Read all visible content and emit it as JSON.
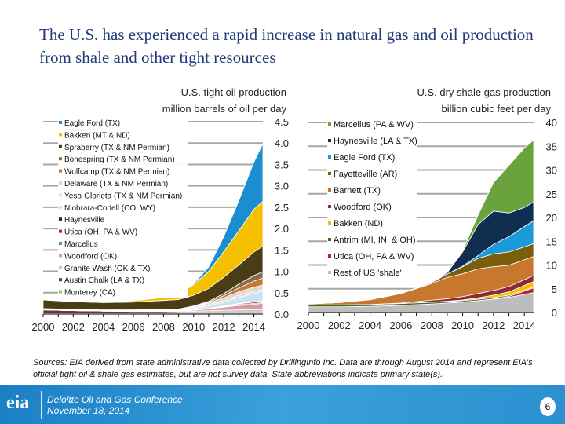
{
  "title": "The U.S. has experienced a rapid increase in natural gas and oil production from shale and other tight resources",
  "sources": "Sources: EIA derived from state administrative data collected by DrillingInfo Inc. Data are through August 2014 and represent EIA's official tight oil & shale gas estimates, but are not survey data. State abbreviations indicate primary state(s).",
  "footer": {
    "logo": "eia",
    "conference": "Deloitte Oil and Gas Conference",
    "date": "November 18, 2014",
    "page": "6"
  },
  "chart_data": [
    {
      "type": "area",
      "stacked": true,
      "title": "U.S. tight oil production",
      "ylabel": "million barrels of oil per day",
      "ylim": [
        0,
        4.5
      ],
      "yticks": [
        "0.0",
        "0.5",
        "1.0",
        "1.5",
        "2.0",
        "2.5",
        "3.0",
        "3.5",
        "4.0",
        "4.5"
      ],
      "xticks": [
        "2000",
        "2002",
        "2004",
        "2006",
        "2008",
        "2010",
        "2012",
        "2014"
      ],
      "grid": true,
      "legend": "top-left",
      "x": [
        2000,
        2002,
        2004,
        2006,
        2008,
        2009,
        2010,
        2011,
        2012,
        2013,
        2014,
        2014.6
      ],
      "series": [
        {
          "name": "Monterey (CA)",
          "color": "#9bc27a",
          "values": [
            0.02,
            0.02,
            0.02,
            0.02,
            0.02,
            0.02,
            0.02,
            0.02,
            0.02,
            0.02,
            0.02,
            0.02
          ]
        },
        {
          "name": "Austin Chalk (LA & TX)",
          "color": "#7a2e3a",
          "values": [
            0.08,
            0.06,
            0.05,
            0.04,
            0.04,
            0.03,
            0.03,
            0.03,
            0.03,
            0.03,
            0.03,
            0.03
          ]
        },
        {
          "name": "Granite Wash (OK & TX)",
          "color": "#c7c7c7",
          "values": [
            0,
            0,
            0,
            0.01,
            0.01,
            0.02,
            0.02,
            0.03,
            0.04,
            0.05,
            0.05,
            0.05
          ]
        },
        {
          "name": "Woodford (OK)",
          "color": "#d99aa4",
          "values": [
            0,
            0,
            0,
            0,
            0.01,
            0.01,
            0.02,
            0.04,
            0.07,
            0.1,
            0.13,
            0.15
          ]
        },
        {
          "name": "Marcellus",
          "color": "#6e8f6e",
          "values": [
            0,
            0,
            0,
            0,
            0,
            0,
            0.01,
            0.01,
            0.01,
            0.02,
            0.02,
            0.02
          ]
        },
        {
          "name": "Utica (OH, PA & WV)",
          "color": "#c0202f",
          "values": [
            0,
            0,
            0,
            0,
            0,
            0,
            0,
            0,
            0.01,
            0.02,
            0.03,
            0.03
          ]
        },
        {
          "name": "Haynesville",
          "color": "#1e2a44",
          "values": [
            0.01,
            0.01,
            0.01,
            0.01,
            0.01,
            0.01,
            0.01,
            0.01,
            0.01,
            0.01,
            0.01,
            0.01
          ]
        },
        {
          "name": "Niobrara-Codell (CO, WY)",
          "color": "#c9e3f2",
          "values": [
            0.01,
            0.01,
            0.01,
            0.01,
            0.01,
            0.01,
            0.02,
            0.05,
            0.09,
            0.14,
            0.19,
            0.22
          ]
        },
        {
          "name": "Yeso-Glorieta (TX & NM Permian)",
          "color": "#f0d9c7",
          "values": [
            0,
            0,
            0,
            0,
            0.01,
            0.01,
            0.02,
            0.03,
            0.04,
            0.05,
            0.05,
            0.05
          ]
        },
        {
          "name": "Delaware (TX & NM Permian)",
          "color": "#d8d8d8",
          "values": [
            0.01,
            0.01,
            0.01,
            0.01,
            0.01,
            0.01,
            0.02,
            0.04,
            0.06,
            0.08,
            0.1,
            0.1
          ]
        },
        {
          "name": "Wolfcamp (TX & NM Permian)",
          "color": "#c47a35",
          "values": [
            0,
            0,
            0,
            0,
            0,
            0,
            0.01,
            0.02,
            0.05,
            0.09,
            0.14,
            0.16
          ]
        },
        {
          "name": "Bonespring (TX & NM Permian)",
          "color": "#8a6a4a",
          "values": [
            0,
            0,
            0,
            0,
            0,
            0,
            0.01,
            0.02,
            0.05,
            0.09,
            0.13,
            0.15
          ]
        },
        {
          "name": "Spraberry (TX & NM Permian)",
          "color": "#4a3c14",
          "values": [
            0.2,
            0.18,
            0.17,
            0.18,
            0.2,
            0.22,
            0.25,
            0.3,
            0.38,
            0.45,
            0.55,
            0.6
          ]
        },
        {
          "name": "Bakken (MT & ND)",
          "color": "#f5c000",
          "values": [
            0.01,
            0.01,
            0.01,
            0.03,
            0.07,
            0.12,
            0.25,
            0.4,
            0.6,
            0.8,
            1.0,
            1.05
          ]
        },
        {
          "name": "Eagle Ford (TX)",
          "color": "#1a8ed0",
          "values": [
            0,
            0,
            0,
            0,
            0,
            0,
            0.02,
            0.1,
            0.35,
            0.7,
            1.1,
            1.35
          ]
        }
      ]
    },
    {
      "type": "area",
      "stacked": true,
      "title": "U.S. dry shale gas production",
      "ylabel": "billion cubic feet per day",
      "ylim": [
        0,
        40
      ],
      "yticks": [
        "0",
        "5",
        "10",
        "15",
        "20",
        "25",
        "30",
        "35",
        "40"
      ],
      "xticks": [
        "2000",
        "2002",
        "2004",
        "2006",
        "2008",
        "2010",
        "2012",
        "2014"
      ],
      "grid": true,
      "legend": "top-left",
      "x": [
        2000,
        2002,
        2004,
        2006,
        2008,
        2009,
        2010,
        2011,
        2012,
        2013,
        2014,
        2014.6
      ],
      "series": [
        {
          "name": "Rest of US 'shale'",
          "color": "#bdbdbd",
          "values": [
            1.2,
            1.2,
            1.3,
            1.5,
            1.8,
            2,
            2.2,
            2.5,
            2.8,
            3.2,
            3.8,
            4.2
          ]
        },
        {
          "name": "Utica (OH, PA & WV)",
          "color": "#c0202f",
          "values": [
            0,
            0,
            0,
            0,
            0,
            0,
            0,
            0,
            0.05,
            0.2,
            0.7,
            1.0
          ]
        },
        {
          "name": "Antrim (MI, IN, & OH)",
          "color": "#3f6b2f",
          "values": [
            0.4,
            0.4,
            0.4,
            0.4,
            0.35,
            0.3,
            0.3,
            0.3,
            0.3,
            0.25,
            0.2,
            0.2
          ]
        },
        {
          "name": "Bakken (ND)",
          "color": "#f5c000",
          "values": [
            0,
            0,
            0,
            0,
            0.05,
            0.1,
            0.15,
            0.3,
            0.5,
            0.7,
            1.0,
            1.1
          ]
        },
        {
          "name": "Woodford (OK)",
          "color": "#8c2a3a",
          "values": [
            0,
            0,
            0,
            0.1,
            0.4,
            0.5,
            0.7,
            0.9,
            1.0,
            1.1,
            1.2,
            1.3
          ]
        },
        {
          "name": "Barnett (TX)",
          "color": "#c8772f",
          "values": [
            0.2,
            0.5,
            1.0,
            2.0,
            3.5,
            4.5,
            4.8,
            5.2,
            5.0,
            4.5,
            4.2,
            4.0
          ]
        },
        {
          "name": "Fayetteville (AR)",
          "color": "#7a5e0c",
          "values": [
            0,
            0,
            0,
            0,
            0.2,
            0.7,
            1.5,
            2.2,
            2.7,
            2.8,
            2.7,
            2.7
          ]
        },
        {
          "name": "Eagle Ford (TX)",
          "color": "#1a9ad8",
          "values": [
            0,
            0,
            0,
            0,
            0,
            0,
            0.1,
            0.6,
            2.0,
            3.2,
            4.3,
            4.8
          ]
        },
        {
          "name": "Haynesville (LA & TX)",
          "color": "#0f2e50",
          "values": [
            0,
            0,
            0,
            0,
            0,
            0.3,
            3.0,
            6.5,
            7.0,
            5.0,
            4.0,
            4.0
          ]
        },
        {
          "name": "Marcellus (PA & WV)",
          "color": "#6aa33c",
          "values": [
            0,
            0,
            0,
            0,
            0,
            0,
            0.2,
            2,
            6,
            10,
            12.5,
            13
          ]
        }
      ]
    }
  ]
}
